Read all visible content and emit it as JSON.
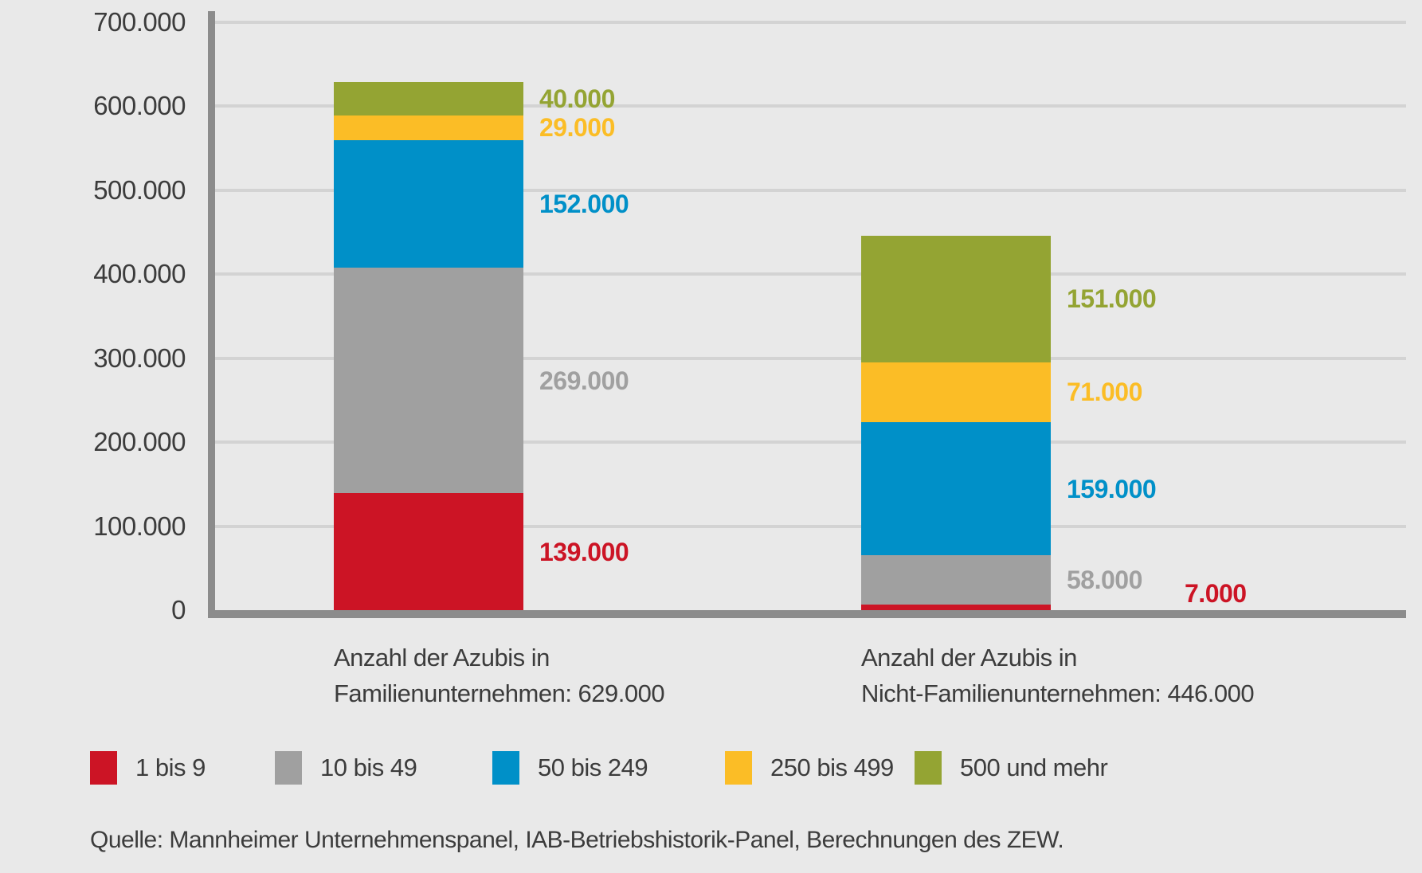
{
  "colors": {
    "background": "#e9e9e9",
    "grid": "#d3d3d3",
    "axis": "#8c8c8c",
    "text": "#3c3c3c"
  },
  "chart_data": {
    "type": "bar",
    "stacked": true,
    "title": "",
    "categories": [
      {
        "line1": "Anzahl der Azubis in",
        "line2": "Familienunternehmen: 629.000",
        "total": 629000
      },
      {
        "line1": "Anzahl der Azubis in",
        "line2": "Nicht-Familienunternehmen: 446.000",
        "total": 446000
      }
    ],
    "series": [
      {
        "name": "1 bis 9",
        "color": "#cc1425",
        "values": [
          139000,
          7000
        ],
        "labels": [
          "139.000",
          "7.000"
        ]
      },
      {
        "name": "10 bis 49",
        "color": "#a0a0a0",
        "values": [
          269000,
          58000
        ],
        "labels": [
          "269.000",
          "58.000"
        ]
      },
      {
        "name": "50 bis 249",
        "color": "#0090c8",
        "values": [
          152000,
          159000
        ],
        "labels": [
          "152.000",
          "159.000"
        ]
      },
      {
        "name": "250 bis 499",
        "color": "#fbbd26",
        "values": [
          29000,
          71000
        ],
        "labels": [
          "29.000",
          "71.000"
        ]
      },
      {
        "name": "500 und mehr",
        "color": "#94a433",
        "values": [
          40000,
          151000
        ],
        "labels": [
          "40.000",
          "151.000"
        ]
      }
    ],
    "y_axis": {
      "min": 0,
      "max": 700000,
      "tick_step": 100000,
      "tick_labels": [
        "0",
        "100.000",
        "200.000",
        "300.000",
        "400.000",
        "500.000",
        "600.000",
        "700.000"
      ]
    },
    "grid": true,
    "legend_position": "bottom"
  },
  "source": "Quelle: Mannheimer Unternehmenspanel, IAB-Betriebshistorik-Panel, Berechnungen des ZEW."
}
